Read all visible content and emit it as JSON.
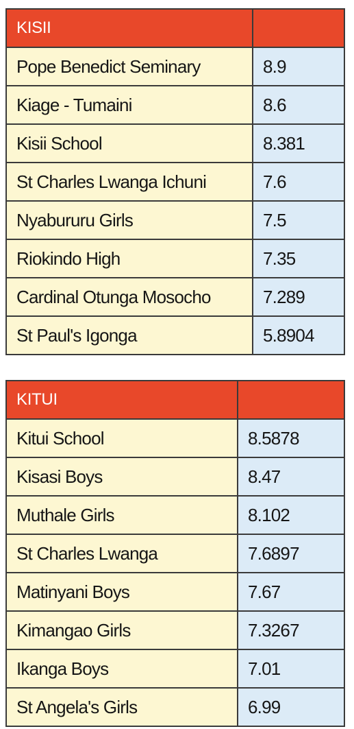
{
  "tables": [
    {
      "header": "KISII",
      "rows": [
        {
          "school": "Pope Benedict Seminary",
          "score": "8.9"
        },
        {
          "school": "Kiage - Tumaini",
          "score": "8.6"
        },
        {
          "school": "Kisii School",
          "score": "8.381"
        },
        {
          "school": "St Charles Lwanga Ichuni",
          "score": "7.6"
        },
        {
          "school": "Nyabururu Girls",
          "score": "7.5"
        },
        {
          "school": "Riokindo High",
          "score": "7.35"
        },
        {
          "school": "Cardinal Otunga Mosocho",
          "score": "7.289"
        },
        {
          "school": "St Paul's Igonga",
          "score": "5.8904"
        }
      ]
    },
    {
      "header": "KITUI",
      "rows": [
        {
          "school": "Kitui School",
          "score": "8.5878"
        },
        {
          "school": "Kisasi Boys",
          "score": "8.47"
        },
        {
          "school": "Muthale Girls",
          "score": "8.102"
        },
        {
          "school": "St Charles Lwanga",
          "score": "7.6897"
        },
        {
          "school": "Matinyani Boys",
          "score": "7.67"
        },
        {
          "school": "Kimangao Girls",
          "score": "7.3267"
        },
        {
          "school": "Ikanga Boys",
          "score": "7.01"
        },
        {
          "school": "St Angela's Girls",
          "score": "6.99"
        }
      ]
    }
  ],
  "colors": {
    "header_bg": "#e8482a",
    "name_bg": "#fdf7d2",
    "value_bg": "#dcebf7",
    "border": "#3a3a3a"
  }
}
